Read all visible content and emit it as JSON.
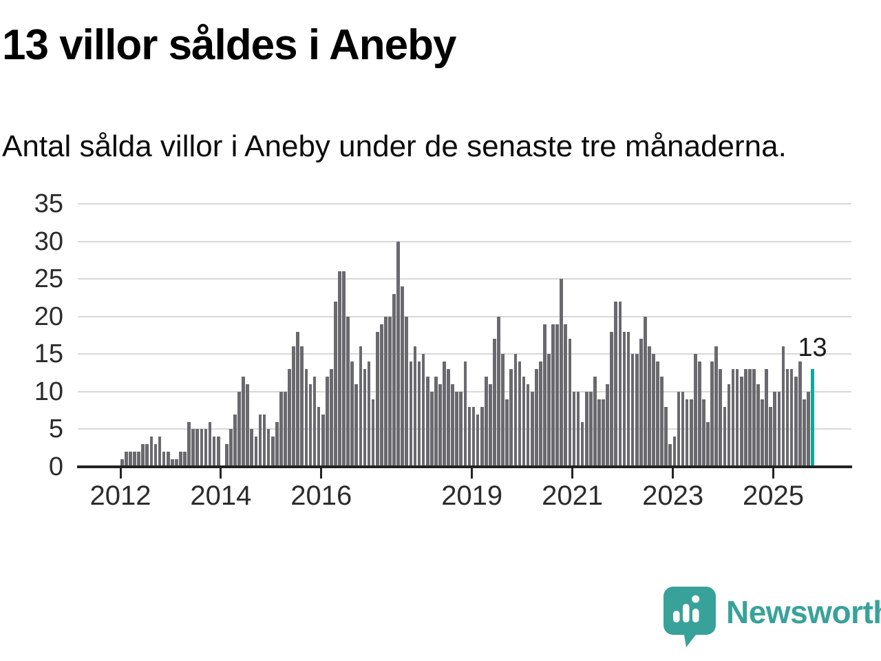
{
  "title": "13 villor såldes i Aneby",
  "subtitle": "Antal sålda villor i Aneby under de senaste tre månaderna.",
  "annotation": {
    "last_value_label": "13"
  },
  "branding": {
    "name": "Newsworthy",
    "icon": "newsworthy-speech-bubble-chart-icon"
  },
  "colors": {
    "bar": "#69696e",
    "accent": "#0fa89c",
    "logo": "#38a29a",
    "grid": "#d8d8d8",
    "axis": "#222222",
    "text": "#2b2b2b"
  },
  "chart_data": {
    "type": "bar",
    "title": "13 villor såldes i Aneby",
    "subtitle": "Antal sålda villor i Aneby under de senaste tre månaderna.",
    "start_month": "2012-01",
    "frequency": "monthly",
    "values": [
      1,
      2,
      2,
      2,
      2,
      3,
      3,
      4,
      3,
      4,
      2,
      2,
      1,
      1,
      2,
      2,
      6,
      5,
      5,
      5,
      5,
      6,
      4,
      4,
      0,
      3,
      5,
      7,
      10,
      12,
      11,
      5,
      4,
      7,
      7,
      5,
      4,
      6,
      10,
      10,
      13,
      16,
      18,
      16,
      13,
      11,
      12,
      8,
      7,
      12,
      13,
      22,
      26,
      26,
      20,
      14,
      11,
      16,
      13,
      14,
      9,
      18,
      19,
      20,
      20,
      23,
      30,
      24,
      20,
      14,
      16,
      14,
      15,
      12,
      10,
      12,
      11,
      14,
      13,
      11,
      10,
      10,
      14,
      8,
      8,
      7,
      8,
      12,
      11,
      17,
      20,
      15,
      9,
      13,
      15,
      14,
      12,
      11,
      10,
      13,
      14,
      19,
      15,
      19,
      19,
      25,
      19,
      17,
      10,
      10,
      6,
      10,
      10,
      12,
      9,
      9,
      11,
      18,
      22,
      22,
      18,
      18,
      15,
      15,
      17,
      20,
      16,
      15,
      14,
      12,
      8,
      3,
      4,
      10,
      10,
      9,
      9,
      15,
      14,
      9,
      6,
      14,
      16,
      13,
      8,
      11,
      13,
      13,
      12,
      13,
      13,
      13,
      11,
      9,
      13,
      8,
      10,
      10,
      16,
      13,
      13,
      12,
      14,
      9,
      10,
      13
    ],
    "highlight_last": true,
    "last_value_label": "13",
    "ylim": [
      0,
      35
    ],
    "yticks": [
      0,
      5,
      10,
      15,
      20,
      25,
      30,
      35
    ],
    "xticks": [
      {
        "label": "2012",
        "month_index": 0
      },
      {
        "label": "2014",
        "month_index": 24
      },
      {
        "label": "2016",
        "month_index": 48
      },
      {
        "label": "2019",
        "month_index": 84
      },
      {
        "label": "2021",
        "month_index": 108
      },
      {
        "label": "2023",
        "month_index": 132
      },
      {
        "label": "2025",
        "month_index": 156
      }
    ],
    "grid": "horizontal",
    "legend": "none"
  }
}
